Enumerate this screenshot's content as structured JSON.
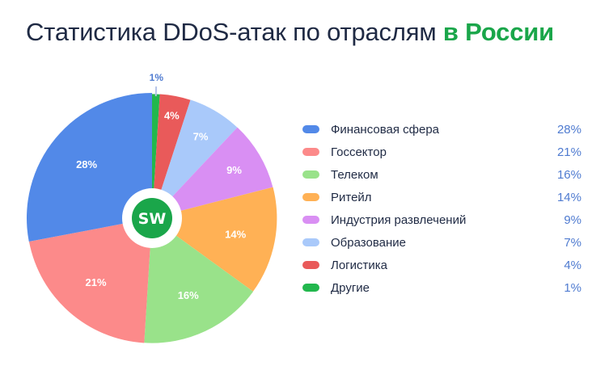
{
  "title": {
    "main": "Статистика DDoS-атак по отраслям",
    "accent": "в России"
  },
  "logo": {
    "text": "SW",
    "color": "#1aa64a"
  },
  "chart_data": {
    "type": "pie",
    "title": "Статистика DDoS-атак по отраслям в России",
    "legend_position": "right",
    "slices": [
      {
        "label": "Финансовая сфера",
        "value": 28,
        "display": "28%",
        "color": "#5289e8"
      },
      {
        "label": "Госсектор",
        "value": 21,
        "display": "21%",
        "color": "#fc8a8a"
      },
      {
        "label": "Телеком",
        "value": 16,
        "display": "16%",
        "color": "#99e28a"
      },
      {
        "label": "Ритейл",
        "value": 14,
        "display": "14%",
        "color": "#ffb155"
      },
      {
        "label": "Индустрия развлечений",
        "value": 9,
        "display": "9%",
        "color": "#d98ff3"
      },
      {
        "label": "Образование",
        "value": 7,
        "display": "7%",
        "color": "#a9c9fa"
      },
      {
        "label": "Логистика",
        "value": 4,
        "display": "4%",
        "color": "#e95a5a"
      },
      {
        "label": "Другие",
        "value": 1,
        "display": "1%",
        "color": "#22b74d"
      }
    ]
  }
}
